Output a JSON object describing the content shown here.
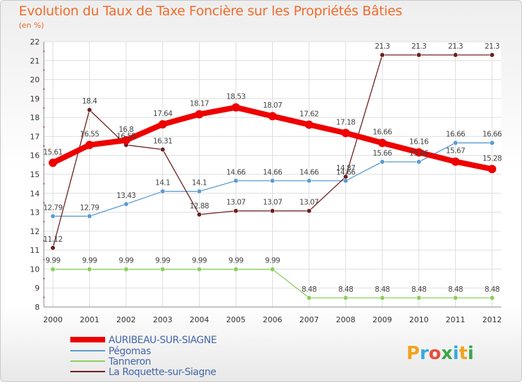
{
  "title": "Evolution du Taux de Taxe Foncière sur les Propriétés Bâties",
  "subtitle": "(en %)",
  "logo": {
    "letters": [
      "P",
      "r",
      "o",
      "x",
      "i",
      "t",
      "i"
    ],
    "colors": [
      "#f2a21b",
      "#36a8e0",
      "#e74c3c",
      "#3aa84a",
      "#36a8e0",
      "#f2a21b",
      "#3aa84a"
    ]
  },
  "chart_data": {
    "type": "line",
    "title": "Evolution du Taux de Taxe Foncière sur les Propriétés Bâties",
    "ylabel": "(en %)",
    "x": [
      "2000",
      "2001",
      "2002",
      "2003",
      "2004",
      "2005",
      "2006",
      "2007",
      "2008",
      "2009",
      "2010",
      "2011",
      "2012"
    ],
    "ylim": [
      8,
      22
    ],
    "yticks": [
      "8",
      "9",
      "10",
      "11",
      "12",
      "13",
      "14",
      "15",
      "16",
      "17",
      "18",
      "19",
      "20",
      "21",
      "22"
    ],
    "grid": true,
    "legend": "bottom-left",
    "series": [
      {
        "name": "AURIBEAU-SUR-SIAGNE",
        "color": "#ee0000",
        "values": [
          15.61,
          16.55,
          16.8,
          17.64,
          18.17,
          18.53,
          18.07,
          17.62,
          17.18,
          16.66,
          16.16,
          15.67,
          15.28
        ],
        "labels": [
          "15.61",
          "16.55",
          "16.8",
          "17.64",
          "18.17",
          "18.53",
          "18.07",
          "17.62",
          "17.18",
          "16.66",
          "16.16",
          "15.67",
          "15.28"
        ]
      },
      {
        "name": "Pégomas",
        "color": "#5b9bd0",
        "values": [
          12.79,
          12.79,
          13.43,
          14.1,
          14.1,
          14.66,
          14.66,
          14.66,
          14.66,
          15.66,
          15.66,
          16.66,
          16.66
        ],
        "labels": [
          "12.79",
          "12.79",
          "13.43",
          "14.1",
          "14.1",
          "14.66",
          "14.66",
          "14.66",
          "14.66",
          "15.66",
          "15.66",
          "16.66",
          "16.66"
        ]
      },
      {
        "name": "Tanneron",
        "color": "#88d05a",
        "values": [
          9.99,
          9.99,
          9.99,
          9.99,
          9.99,
          9.99,
          9.99,
          8.48,
          8.48,
          8.48,
          8.48,
          8.48,
          8.48
        ],
        "labels": [
          "9.99",
          "9.99",
          "9.99",
          "9.99",
          "9.99",
          "9.99",
          "9.99",
          "8.48",
          "8.48",
          "8.48",
          "8.48",
          "8.48",
          "8.48"
        ]
      },
      {
        "name": "La Roquette-sur-Siagne",
        "color": "#6b1f1f",
        "values": [
          11.12,
          18.4,
          16.55,
          16.31,
          12.88,
          13.07,
          13.07,
          13.07,
          14.87,
          21.3,
          21.3,
          21.3,
          21.3
        ],
        "labels": [
          "11.12",
          "18.4",
          "16.55",
          "16.31",
          "12.88",
          "13.07",
          "13.07",
          "13.07",
          "14.87",
          "21.3",
          "21.3",
          "21.3",
          "21.3"
        ]
      }
    ]
  }
}
